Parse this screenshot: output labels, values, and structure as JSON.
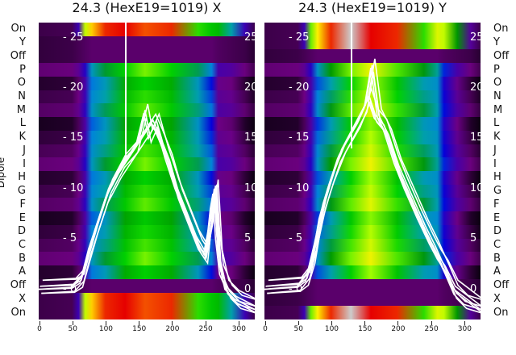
{
  "y_axis_label": "Dipole",
  "chart_data": [
    {
      "type": "heatmap",
      "title": "24.3 (HexE19=1019) X",
      "row_labels": [
        "On",
        "Y",
        "Off",
        "P",
        "O",
        "N",
        "M",
        "L",
        "K",
        "J",
        "I",
        "H",
        "G",
        "F",
        "E",
        "D",
        "C",
        "B",
        "A",
        "Off",
        "X",
        "On"
      ],
      "row_profiles": [
        "on",
        "off",
        "off",
        "dipole",
        "dipole",
        "dipole",
        "dipole",
        "dipole",
        "dipole",
        "dipole",
        "dipole",
        "dipole",
        "dipole",
        "dipole",
        "dipole",
        "dipole",
        "dipole",
        "dipole",
        "dipole",
        "off",
        "on",
        "on"
      ],
      "profiles": {
        "x": [
          0,
          50,
          60,
          70,
          80,
          100,
          130,
          160,
          200,
          240,
          260,
          270,
          290,
          310,
          325
        ],
        "dipole": [
          0.05,
          0.06,
          0.1,
          0.2,
          0.38,
          0.45,
          0.56,
          0.62,
          0.56,
          0.44,
          0.33,
          0.14,
          0.12,
          0.06,
          0.02
        ],
        "off": [
          0.04,
          0.05,
          0.06,
          0.07,
          0.08,
          0.08,
          0.08,
          0.08,
          0.08,
          0.08,
          0.08,
          0.07,
          0.06,
          0.05,
          0.03
        ],
        "on": [
          0.05,
          0.06,
          0.2,
          0.7,
          0.78,
          0.88,
          0.9,
          0.86,
          0.88,
          0.62,
          0.58,
          0.56,
          0.45,
          0.2,
          0.05
        ]
      },
      "xticks": [
        0,
        50,
        100,
        150,
        200,
        250,
        300
      ],
      "xlim": [
        0,
        325
      ],
      "overlay_yticks": [
        0,
        5,
        10,
        15,
        20,
        25
      ],
      "overlay_ylim": [
        -3,
        26.5
      ],
      "overlay_series": [
        {
          "x": [
            0,
            50,
            62,
            72,
            85,
            100,
            120,
            140,
            160,
            170,
            180,
            195,
            210,
            225,
            240,
            250,
            258,
            262,
            266,
            272,
            285,
            300,
            325
          ],
          "y": [
            0,
            0.1,
            0.6,
            3,
            6,
            9,
            11.5,
            13.5,
            15.5,
            16.5,
            15,
            12.5,
            9,
            6.5,
            4,
            3,
            8,
            9.5,
            5,
            1.5,
            -0.5,
            -1.5,
            -2
          ]
        },
        {
          "x": [
            0,
            50,
            64,
            75,
            90,
            105,
            125,
            145,
            158,
            165,
            175,
            190,
            205,
            220,
            235,
            248,
            258,
            264,
            270,
            280,
            295,
            325
          ],
          "y": [
            0,
            0.2,
            1.2,
            4,
            7,
            10,
            12.5,
            14,
            17.5,
            15,
            16.5,
            13,
            10,
            7.5,
            5,
            3.5,
            7,
            10,
            3,
            0,
            -1,
            -2
          ]
        },
        {
          "x": [
            131,
            131,
            131
          ],
          "y": [
            13,
            20,
            28
          ]
        }
      ]
    },
    {
      "type": "heatmap",
      "title": "24.3 (HexE19=1019) Y",
      "row_labels": [
        "On",
        "Y",
        "Off",
        "P",
        "O",
        "N",
        "M",
        "L",
        "K",
        "J",
        "I",
        "H",
        "G",
        "F",
        "E",
        "D",
        "C",
        "B",
        "A",
        "Off",
        "X",
        "On"
      ],
      "row_profiles": [
        "on",
        "on",
        "off",
        "dipole",
        "dipole",
        "dipole",
        "dipole",
        "dipole",
        "dipole",
        "dipole",
        "dipole",
        "dipole",
        "dipole",
        "dipole",
        "dipole",
        "dipole",
        "dipole",
        "dipole",
        "dipole",
        "off",
        "off",
        "on"
      ],
      "profiles": {
        "x": [
          0,
          50,
          60,
          70,
          80,
          100,
          130,
          160,
          200,
          240,
          260,
          270,
          290,
          310,
          325
        ],
        "dipole": [
          0.05,
          0.06,
          0.1,
          0.2,
          0.36,
          0.47,
          0.62,
          0.7,
          0.6,
          0.46,
          0.42,
          0.28,
          0.14,
          0.06,
          0.02
        ],
        "off": [
          0.04,
          0.05,
          0.06,
          0.07,
          0.08,
          0.08,
          0.08,
          0.08,
          0.08,
          0.08,
          0.08,
          0.07,
          0.06,
          0.05,
          0.03
        ],
        "on": [
          0.05,
          0.06,
          0.2,
          0.65,
          0.75,
          0.88,
          0.97,
          0.9,
          0.88,
          0.62,
          0.72,
          0.7,
          0.5,
          0.15,
          0.05
        ]
      },
      "xticks": [
        0,
        50,
        100,
        150,
        200,
        250,
        300
      ],
      "xlim": [
        0,
        325
      ],
      "overlay_yticks": [
        0,
        5,
        10,
        15,
        20,
        25
      ],
      "overlay_ylim": [
        -3,
        26.5
      ],
      "overlay_series": [
        {
          "x": [
            0,
            50,
            62,
            72,
            82,
            95,
            110,
            130,
            150,
            160,
            170,
            185,
            200,
            220,
            240,
            255,
            265,
            272,
            285,
            300,
            325
          ],
          "y": [
            0,
            0.2,
            0.8,
            3,
            7,
            10,
            13,
            15.5,
            18,
            22,
            17,
            15,
            12,
            9,
            6,
            4,
            2.5,
            1.5,
            -0.5,
            -1.5,
            -2
          ]
        },
        {
          "x": [
            0,
            50,
            64,
            75,
            88,
            100,
            118,
            140,
            155,
            165,
            178,
            195,
            210,
            230,
            248,
            260,
            270,
            285,
            325
          ],
          "y": [
            0,
            0.3,
            1.5,
            4.5,
            8.5,
            11,
            14,
            16.5,
            19,
            17,
            16,
            12.5,
            10,
            7,
            4.5,
            3,
            2,
            0,
            -2
          ]
        },
        {
          "x": [
            131,
            131,
            131
          ],
          "y": [
            14,
            21,
            28
          ]
        }
      ]
    }
  ]
}
